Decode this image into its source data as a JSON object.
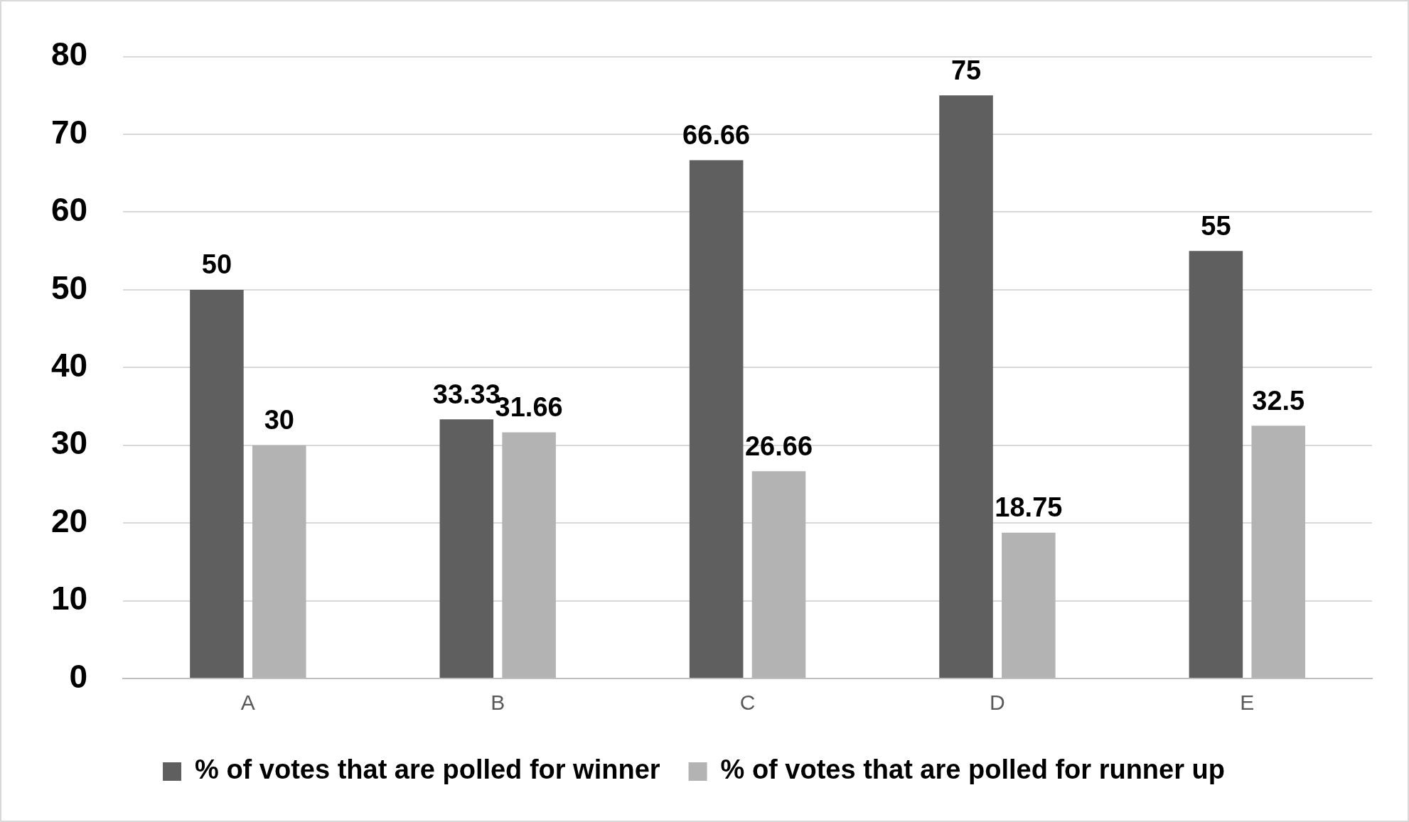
{
  "chart_data": {
    "type": "bar",
    "categories": [
      "A",
      "B",
      "C",
      "D",
      "E"
    ],
    "series": [
      {
        "name": "% of votes that are polled for winner",
        "color": "#5f5f5f",
        "values": [
          50,
          33.33,
          66.66,
          75,
          55
        ]
      },
      {
        "name": "% of votes that are polled for runner up",
        "color": "#b3b3b3",
        "values": [
          30,
          31.66,
          26.66,
          18.75,
          32.5
        ]
      }
    ],
    "ylim": [
      0,
      80
    ],
    "yticks": [
      0,
      10,
      20,
      30,
      40,
      50,
      60,
      70,
      80
    ],
    "grid": "y",
    "legend": "bottom",
    "data_labels": true
  }
}
